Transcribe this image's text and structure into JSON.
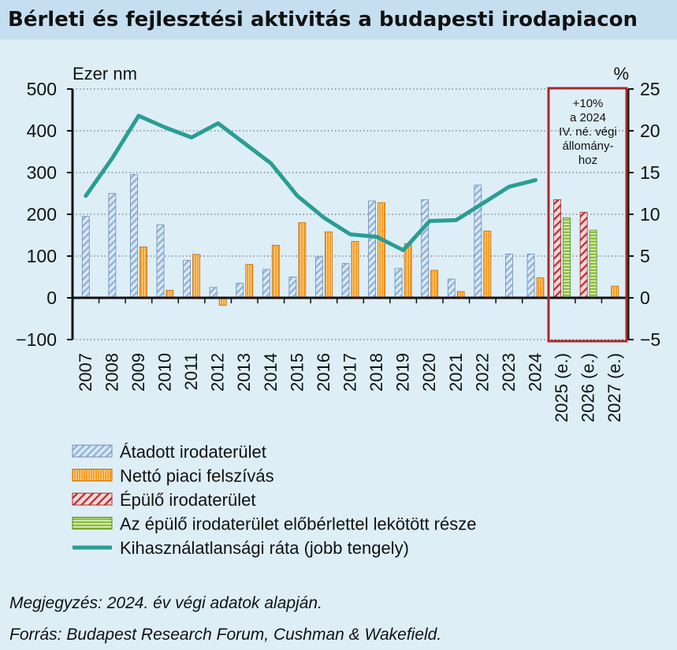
{
  "title": "Bérleti és fejlesztési aktivitás a budapesti irodapiacon",
  "chart_data": {
    "type": "bar",
    "categories": [
      "2007",
      "2008",
      "2009",
      "2010",
      "2011",
      "2012",
      "2013",
      "2014",
      "2015",
      "2016",
      "2017",
      "2018",
      "2019",
      "2020",
      "2021",
      "2022",
      "2023",
      "2024",
      "2025 (e.)",
      "2026 (e.)",
      "2027 (e.)"
    ],
    "left_axis": {
      "label": "Ezer nm",
      "min": -100,
      "max": 500,
      "ticks": [
        -100,
        0,
        100,
        200,
        300,
        400,
        500
      ],
      "tick_labels": [
        "−100",
        "0",
        "100",
        "200",
        "300",
        "400",
        "500"
      ]
    },
    "right_axis": {
      "label": "%",
      "min": -5,
      "max": 25,
      "ticks": [
        -5,
        0,
        5,
        10,
        15,
        20,
        25
      ],
      "tick_labels": [
        "−5",
        "0",
        "5",
        "10",
        "15",
        "20",
        "25"
      ]
    },
    "series": [
      {
        "name": "Átadott irodaterület",
        "axis": "left",
        "kind": "bar",
        "color": "#c9dcef",
        "stroke": "#6f8fb0",
        "values": [
          195,
          250,
          295,
          175,
          90,
          25,
          35,
          68,
          50,
          98,
          82,
          232,
          70,
          235,
          45,
          270,
          105,
          105,
          null,
          null,
          null
        ]
      },
      {
        "name": "Nettó piaci felszívás",
        "axis": "left",
        "kind": "bar",
        "color": "#f59a1f",
        "stroke": "#c46a0a",
        "values": [
          null,
          null,
          122,
          18,
          104,
          -18,
          80,
          126,
          180,
          158,
          135,
          228,
          130,
          66,
          15,
          160,
          null,
          48,
          null,
          null,
          28
        ]
      },
      {
        "name": "Épülő irodaterület",
        "axis": "left",
        "kind": "bar",
        "color": "#f4c3c3",
        "stroke": "#a8282b",
        "values": [
          null,
          null,
          null,
          null,
          null,
          null,
          null,
          null,
          null,
          null,
          null,
          null,
          null,
          null,
          null,
          null,
          null,
          null,
          235,
          205,
          null
        ]
      },
      {
        "name": "Az épülő irodaterület előbérlettel lekötött része",
        "axis": "left",
        "kind": "bar",
        "color": "#bfe08a",
        "stroke": "#5b8a1e",
        "values": [
          null,
          null,
          null,
          null,
          null,
          null,
          null,
          null,
          null,
          null,
          null,
          null,
          null,
          null,
          null,
          null,
          null,
          null,
          192,
          162,
          null
        ]
      },
      {
        "name": "Kihasználatlansági ráta (jobb tengely)",
        "axis": "right",
        "kind": "line",
        "color": "#2a9d93",
        "values": [
          12.2,
          16.7,
          21.8,
          20.4,
          19.2,
          20.9,
          18.5,
          16.1,
          12.2,
          9.6,
          7.6,
          7.3,
          5.7,
          9.2,
          9.3,
          11.3,
          13.3,
          14.1,
          null,
          null,
          null
        ]
      }
    ],
    "annotation": "+10%\na 2024\nIV. né. végi\nállomány-\nhoz"
  },
  "legend": [
    "Átadott irodaterület",
    "Nettó piaci felszívás",
    "Épülő irodaterület",
    "Az épülő irodaterület előbérlettel lekötött része",
    "Kihasználatlansági ráta (jobb tengely)"
  ],
  "note": "Megjegyzés: 2024. év végi adatok alapján.",
  "source": "Forrás: Budapest Research Forum, Cushman & Wakefield.",
  "colors": {
    "background": "#ddeef7",
    "title_bar": "#c5dff0",
    "highlight_box": "#a8282b",
    "line": "#2a9d93"
  }
}
